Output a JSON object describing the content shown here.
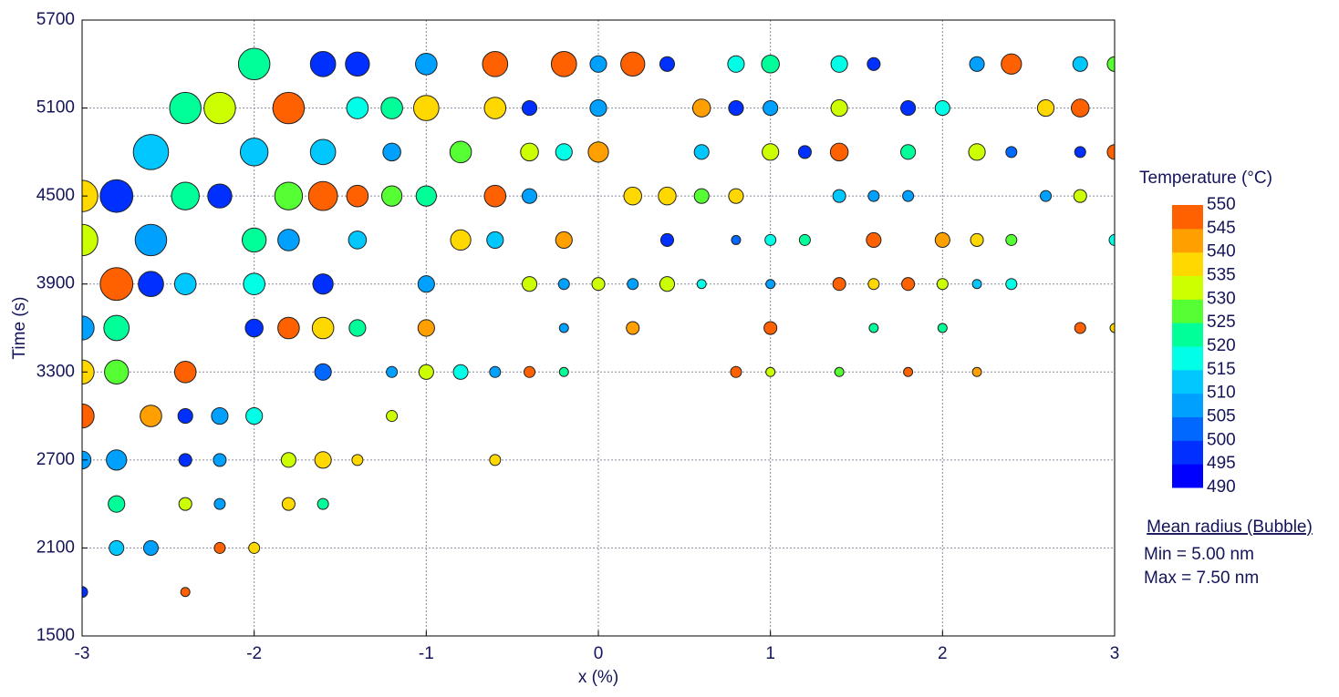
{
  "chart_data": {
    "type": "bubble",
    "xlabel": "x (%)",
    "ylabel": "Time (s)",
    "xlim": [
      -3,
      3
    ],
    "xticks": [
      -3,
      -2,
      -1,
      0,
      1,
      2,
      3
    ],
    "ylim": [
      1500,
      5700
    ],
    "yticks": [
      1500,
      2100,
      2700,
      3300,
      3900,
      4500,
      5100,
      5700
    ],
    "grid": true,
    "x": [
      -2,
      -1.6,
      -1.4,
      -1,
      -0.6,
      -0.2,
      0,
      0.2,
      0.4,
      0.8,
      1,
      1.4,
      1.6,
      2.2,
      2.4,
      2.8,
      3,
      -2.4,
      -2.2,
      -1.8,
      -1.4,
      -1.2,
      -1,
      -0.6,
      -0.4,
      0,
      0.6,
      0.8,
      1,
      1.4,
      1.8,
      2,
      2.6,
      2.8,
      -2.6,
      -2,
      -1.6,
      -1.2,
      -0.8,
      -0.4,
      -0.2,
      0,
      0.6,
      1,
      1.2,
      1.4,
      1.8,
      2.2,
      2.4,
      2.8,
      3,
      -3,
      -2.8,
      -2.4,
      -2.2,
      -1.8,
      -1.6,
      -1.4,
      -1.2,
      -1,
      -0.6,
      -0.4,
      0.2,
      0.4,
      0.6,
      0.8,
      1.4,
      1.6,
      1.8,
      2.6,
      2.8,
      -3,
      -2.6,
      -2,
      -1.8,
      -1.4,
      -0.8,
      -0.6,
      -0.2,
      0.4,
      0.8,
      1,
      1.2,
      1.6,
      2,
      2.2,
      2.4,
      3,
      -2.8,
      -2.6,
      -2.4,
      -2,
      -1.6,
      -1,
      -0.4,
      -0.2,
      0,
      0.2,
      0.4,
      0.6,
      1,
      1.4,
      1.6,
      1.8,
      2,
      2.2,
      2.4,
      -3,
      -2.8,
      -2,
      -1.8,
      -1.6,
      -1.4,
      -1,
      -0.2,
      0.2,
      1,
      1.6,
      2,
      2.8,
      3,
      -3,
      -2.8,
      -2.4,
      -1.6,
      -1.2,
      -1,
      -0.8,
      -0.6,
      -0.4,
      -0.2,
      0.8,
      1,
      1.4,
      1.8,
      2.2,
      -3,
      -2.6,
      -2.4,
      -2.2,
      -2,
      -1.2,
      -3,
      -2.8,
      -2.4,
      -2.2,
      -1.8,
      -1.6,
      -1.4,
      -0.6,
      -2.8,
      -2.4,
      -2.2,
      -1.8,
      -1.6,
      -2.8,
      -2.6,
      -2.2,
      -2,
      -3,
      -2.4
    ],
    "y": [
      5400,
      5400,
      5400,
      5400,
      5400,
      5400,
      5400,
      5400,
      5400,
      5400,
      5400,
      5400,
      5400,
      5400,
      5400,
      5400,
      5400,
      5100,
      5100,
      5100,
      5100,
      5100,
      5100,
      5100,
      5100,
      5100,
      5100,
      5100,
      5100,
      5100,
      5100,
      5100,
      5100,
      5100,
      4800,
      4800,
      4800,
      4800,
      4800,
      4800,
      4800,
      4800,
      4800,
      4800,
      4800,
      4800,
      4800,
      4800,
      4800,
      4800,
      4800,
      4500,
      4500,
      4500,
      4500,
      4500,
      4500,
      4500,
      4500,
      4500,
      4500,
      4500,
      4500,
      4500,
      4500,
      4500,
      4500,
      4500,
      4500,
      4500,
      4500,
      4200,
      4200,
      4200,
      4200,
      4200,
      4200,
      4200,
      4200,
      4200,
      4200,
      4200,
      4200,
      4200,
      4200,
      4200,
      4200,
      4200,
      3900,
      3900,
      3900,
      3900,
      3900,
      3900,
      3900,
      3900,
      3900,
      3900,
      3900,
      3900,
      3900,
      3900,
      3900,
      3900,
      3900,
      3900,
      3900,
      3600,
      3600,
      3600,
      3600,
      3600,
      3600,
      3600,
      3600,
      3600,
      3600,
      3600,
      3600,
      3600,
      3600,
      3300,
      3300,
      3300,
      3300,
      3300,
      3300,
      3300,
      3300,
      3300,
      3300,
      3300,
      3300,
      3300,
      3300,
      3300,
      3000,
      3000,
      3000,
      3000,
      3000,
      3000,
      2700,
      2700,
      2700,
      2700,
      2700,
      2700,
      2700,
      2700,
      2400,
      2400,
      2400,
      2400,
      2400,
      2100,
      2100,
      2100,
      2100,
      1800,
      1800
    ],
    "size": [
      6.8,
      6.3,
      6.2,
      6.0,
      6.3,
      6.3,
      5.6,
      6.2,
      5.45,
      5.6,
      5.7,
      5.6,
      5.3,
      5.45,
      5.9,
      5.45,
      5.45,
      6.8,
      6.8,
      6.8,
      6.0,
      6.0,
      6.3,
      6.0,
      5.45,
      5.6,
      5.7,
      5.45,
      5.45,
      5.6,
      5.45,
      5.45,
      5.6,
      5.7,
      7.1,
      6.5,
      6.3,
      5.7,
      6.0,
      5.7,
      5.6,
      5.9,
      5.45,
      5.6,
      5.3,
      5.7,
      5.45,
      5.6,
      5.15,
      5.15,
      5.45,
      6.8,
      6.9,
      6.5,
      6.2,
      6.5,
      6.6,
      6.0,
      5.9,
      5.9,
      6.0,
      5.45,
      5.7,
      5.7,
      5.45,
      5.45,
      5.3,
      5.15,
      5.15,
      5.15,
      5.3,
      6.8,
      6.8,
      6.2,
      6.0,
      5.7,
      5.9,
      5.6,
      5.6,
      5.3,
      5.0,
      5.15,
      5.15,
      5.45,
      5.45,
      5.3,
      5.15,
      5.15,
      6.9,
      6.3,
      6.0,
      6.0,
      5.9,
      5.6,
      5.45,
      5.15,
      5.3,
      5.15,
      5.45,
      5.0,
      5.0,
      5.3,
      5.15,
      5.3,
      5.15,
      5.0,
      5.15,
      6.2,
      6.3,
      5.7,
      6.0,
      6.0,
      5.6,
      5.6,
      5.0,
      5.3,
      5.3,
      5.0,
      5.0,
      5.15,
      5.0,
      6.2,
      6.2,
      6.0,
      5.6,
      5.15,
      5.45,
      5.45,
      5.15,
      5.15,
      5.0,
      5.15,
      5.0,
      5.0,
      5.0,
      5.0,
      6.2,
      6.0,
      5.45,
      5.6,
      5.6,
      5.15,
      5.7,
      5.9,
      5.3,
      5.3,
      5.45,
      5.6,
      5.15,
      5.15,
      5.6,
      5.3,
      5.15,
      5.3,
      5.15,
      5.45,
      5.45,
      5.15,
      5.15,
      5.15,
      5.0
    ],
    "color_values": [
      522,
      495,
      495,
      508,
      548,
      548,
      506,
      548,
      495,
      517,
      522,
      517,
      495,
      508,
      548,
      512,
      527,
      522,
      530,
      548,
      517,
      522,
      537,
      537,
      497,
      508,
      542,
      497,
      508,
      530,
      497,
      517,
      537,
      548,
      512,
      512,
      512,
      506,
      527,
      530,
      517,
      542,
      512,
      532,
      497,
      548,
      522,
      530,
      503,
      497,
      548,
      537,
      497,
      522,
      497,
      527,
      548,
      548,
      527,
      522,
      548,
      508,
      537,
      537,
      527,
      537,
      512,
      508,
      508,
      508,
      530,
      530,
      508,
      522,
      506,
      512,
      537,
      512,
      542,
      495,
      503,
      517,
      522,
      548,
      542,
      537,
      527,
      517,
      548,
      497,
      512,
      517,
      497,
      506,
      530,
      506,
      530,
      508,
      530,
      517,
      506,
      548,
      537,
      548,
      530,
      512,
      517,
      506,
      522,
      497,
      548,
      537,
      522,
      542,
      508,
      542,
      548,
      522,
      522,
      548,
      537,
      537,
      527,
      548,
      503,
      508,
      530,
      517,
      506,
      548,
      522,
      548,
      530,
      527,
      548,
      542,
      548,
      542,
      497,
      506,
      517,
      530,
      508,
      508,
      497,
      508,
      530,
      537,
      537,
      537,
      522,
      530,
      506,
      537,
      522,
      512,
      506,
      548,
      537,
      497,
      548
    ],
    "colorbar": {
      "title": "Temperature (°C)",
      "clim": [
        490,
        550
      ],
      "ticks": [
        490,
        495,
        500,
        505,
        510,
        515,
        520,
        525,
        530,
        535,
        540,
        545,
        550
      ],
      "colors": [
        "#0000ff",
        "#0030ff",
        "#0068ff",
        "#00a0ff",
        "#00c8ff",
        "#00ffe6",
        "#00ff99",
        "#55ff33",
        "#ccff00",
        "#ffd800",
        "#ffa000",
        "#ff6000",
        "#ff0000"
      ]
    },
    "size_legend": {
      "title": "Mean radius (Bubble)",
      "min": {
        "value": 5,
        "label": "Min = 5.00 nm"
      },
      "max": {
        "value": 7.5,
        "label": "Max = 7.50 nm"
      }
    }
  }
}
